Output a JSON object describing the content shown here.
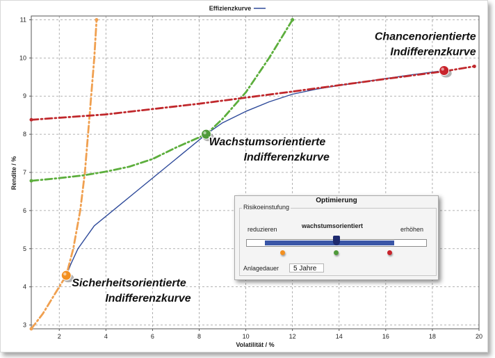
{
  "chart_data": {
    "type": "line",
    "title": "Effizienzkurve",
    "xlabel": "Volatilität / %",
    "ylabel": "Rendite / %",
    "xlim": [
      0.8,
      20
    ],
    "ylim": [
      2.9,
      11.1
    ],
    "xticks": [
      2,
      4,
      6,
      8,
      10,
      12,
      14,
      16,
      18,
      20
    ],
    "yticks": [
      3,
      4,
      5,
      6,
      7,
      8,
      9,
      10,
      11
    ],
    "grid": true,
    "legend": "top-center",
    "series": [
      {
        "name": "Effizienzkurve",
        "color": "#2e4a9a",
        "style": "solid",
        "x": [
          2.3,
          2.5,
          2.8,
          3.5,
          4.5,
          5.5,
          6.5,
          7.5,
          8.3,
          9.0,
          10.0,
          11.0,
          12.0,
          13.0,
          14.0,
          15.0,
          16.0,
          17.0,
          18.0,
          18.5
        ],
        "y": [
          4.3,
          4.6,
          5.0,
          5.6,
          6.1,
          6.6,
          7.1,
          7.6,
          8.0,
          8.3,
          8.6,
          8.85,
          9.05,
          9.18,
          9.28,
          9.37,
          9.46,
          9.55,
          9.63,
          9.67
        ]
      },
      {
        "color": "#f0a050",
        "style": "dash-dot",
        "x": [
          0.8,
          1.3,
          1.8,
          2.3,
          2.6,
          2.9,
          3.1,
          3.3,
          3.5,
          3.6
        ],
        "y": [
          2.9,
          3.3,
          3.8,
          4.3,
          5.0,
          6.0,
          7.0,
          8.5,
          10.0,
          11.0
        ]
      },
      {
        "color": "#5cae3c",
        "style": "dash-dot",
        "x": [
          0.8,
          2.0,
          3.0,
          4.0,
          5.0,
          6.0,
          7.0,
          8.3,
          9.0,
          10.0,
          11.0,
          12.0
        ],
        "y": [
          6.78,
          6.85,
          6.92,
          7.02,
          7.15,
          7.35,
          7.65,
          8.0,
          8.4,
          9.1,
          10.0,
          11.0
        ]
      },
      {
        "color": "#c0282c",
        "style": "dash-dot",
        "x": [
          0.8,
          4.0,
          8.0,
          12.0,
          16.0,
          18.5,
          19.8
        ],
        "y": [
          8.38,
          8.52,
          8.8,
          9.12,
          9.45,
          9.65,
          9.78
        ]
      }
    ],
    "markers": [
      {
        "x": 2.3,
        "y": 4.3,
        "color": "#f39020",
        "label": [
          "Sicherheitsorientierte",
          "Indifferenzkurve"
        ]
      },
      {
        "x": 8.3,
        "y": 8.0,
        "color": "#4f9a3a",
        "label": [
          "Wachstumsorientierte",
          "Indifferenzkurve"
        ]
      },
      {
        "x": 18.5,
        "y": 9.67,
        "color": "#c8232b",
        "label": [
          "Chancenorientierte",
          "Indifferenzkurve"
        ]
      }
    ]
  },
  "panel": {
    "title": "Optimierung",
    "group_label": "Risikoeinstufung",
    "left_label": "reduzieren",
    "center_label": "wachstumsorientiert",
    "right_label": "erhöhen",
    "slider": {
      "range_start": 0.1,
      "range_end": 0.82,
      "value": 0.5
    },
    "dots": [
      {
        "position": 0.2,
        "color": "#f39020"
      },
      {
        "position": 0.5,
        "color": "#4f9a3a"
      },
      {
        "position": 0.8,
        "color": "#c8232b"
      }
    ],
    "duration_label": "Anlagedauer",
    "duration_value": "5 Jahre"
  }
}
